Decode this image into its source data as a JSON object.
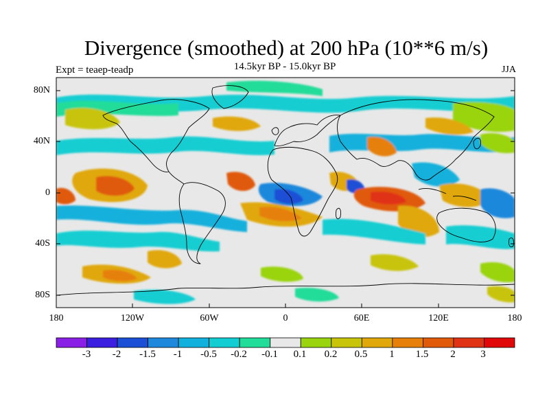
{
  "plot": {
    "title": "Divergence (smoothed) at 200 hPa (10**6 m/s)",
    "subtitle": "14.5kyr BP - 15.0kyr BP",
    "experiment": "Expt = teaep-teadp",
    "season": "JJA"
  },
  "axes": {
    "y_ticks": [
      "80N",
      "40N",
      "0",
      "40S",
      "80S"
    ],
    "x_ticks": [
      "180",
      "120W",
      "60W",
      "0",
      "60E",
      "120E",
      "180"
    ]
  },
  "colorbar": {
    "labels": [
      "-3",
      "-2",
      "-1.5",
      "-1",
      "-0.5",
      "-0.2",
      "-0.1",
      "0.1",
      "0.2",
      "0.5",
      "1",
      "1.5",
      "2",
      "3"
    ],
    "colors": [
      "#8a1fe6",
      "#3a1fe0",
      "#1a4fd6",
      "#1e88dc",
      "#12b0dc",
      "#12cdd2",
      "#22dc9a",
      "#e8e8e8",
      "#9ad40e",
      "#c8c40a",
      "#e0a80a",
      "#e6800a",
      "#e05a0a",
      "#e03214",
      "#e00808"
    ]
  },
  "palette": {
    "background_field": "#e8e8e8",
    "coast": "#000000"
  }
}
